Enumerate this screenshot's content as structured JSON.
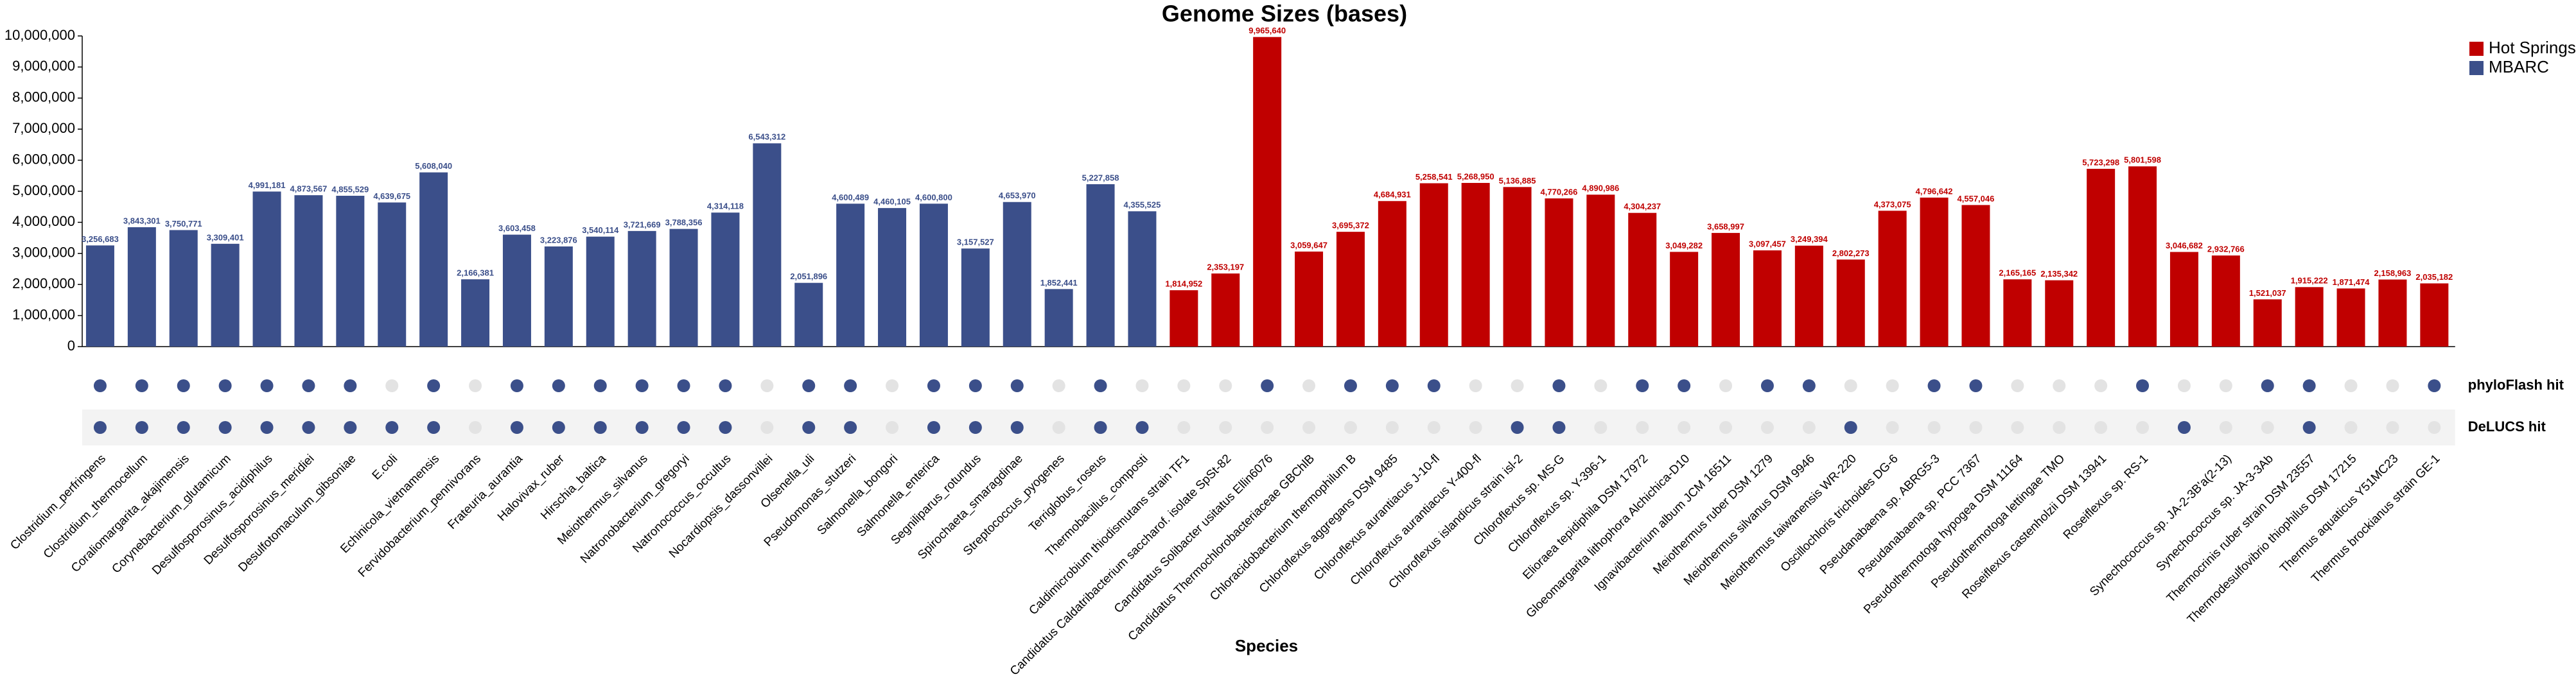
{
  "chart_data": {
    "type": "bar",
    "title": "Genome Sizes (bases)",
    "x_label": "Species",
    "categories": [
      "Clostridium_perfringens",
      "Clostridium_thermocellum",
      "Coraliomargarita_akajimensis",
      "Corynebacterium_glutamicum",
      "Desulfosporosinus_acidiphilus",
      "Desulfosporosinus_meridiei",
      "Desulfotomaculum_gibsoniae",
      "E.coli",
      "Echinicola_vietnamensis",
      "Fervidobacterium_pennivorans",
      "Frateuria_aurantia",
      "Halovivax_ruber",
      "Hirschia_baltica",
      "Meiothermus_silvanus",
      "Natronobacterium_gregoryi",
      "Natronococcus_occultus",
      "Nocardiopsis_dassonvillei",
      "Olsenella_uli",
      "Pseudomonas_stutzeri",
      "Salmonella_bongori",
      "Salmonella_enterica",
      "Segniliparus_rotundus",
      "Spirochaeta_smaragdinae",
      "Streptococcus_pyogenes",
      "Terriglobus_roseus",
      "Thermobacillus_composti",
      "Caldimicrobium thiodismutans strain TF1",
      "Candidatus Caldatribacterium saccharof. isolate SpSt-82",
      "Candidatus Solibacter usitatus Ellin6076",
      "Candidatus Thermochlorobacteriaceae GBChlB",
      "Chloracidobacterium thermophilum B",
      "Chloroflexus aggregans DSM 9485",
      "Chloroflexus aurantiacus J-10-fl",
      "Chloroflexus aurantiacus Y-400-fl",
      "Chloroflexus islandicus strain isl-2",
      "Chloroflexus sp. MS-G",
      "Chloroflexus sp. Y-396-1",
      "Elioraea tepidiphila DSM 17972",
      "Gloeomargarita lithophora Alchichica-D10",
      "Ignavibacterium album JCM 16511",
      "Meiothermus ruber DSM 1279",
      "Meiothermus silvanus DSM 9946",
      "Meiothermus taiwanensis WR-220",
      "Oscillochloris trichoides DG-6",
      "Pseudanabaena sp. ABRG5-3",
      "Pseudanabaena sp. PCC 7367",
      "Pseudothermotoga hypogea DSM 11164",
      "Pseudothermotoga lettingae TMO",
      "Roseiflexus castenholzii DSM 13941",
      "Roseiflexus sp. RS-1",
      null,
      "Synechococcus sp. JA-2-3B'a(2-13)",
      "Synechococcus sp. JA-3-3Ab",
      "Thermocrinis ruber strain DSM 23557",
      "Thermodesulfovibrio thiophilus DSM 17215",
      "Thermus aquaticus Y51MC23",
      "Thermus brockianus strain GE-1"
    ],
    "series": [
      {
        "name": "Hot Springs",
        "color": "#c00000",
        "values": [
          null,
          null,
          null,
          null,
          null,
          null,
          null,
          null,
          null,
          null,
          null,
          null,
          null,
          null,
          null,
          null,
          null,
          null,
          null,
          null,
          null,
          null,
          null,
          null,
          null,
          null,
          1814952,
          2353197,
          9965640,
          3059647,
          3695372,
          4684931,
          5258541,
          5268950,
          5136885,
          4770266,
          4890986,
          4304237,
          3049282,
          3658997,
          3097457,
          3249394,
          2802273,
          4373075,
          4796642,
          4557046,
          2165165,
          2135342,
          5723298,
          5801598,
          3046682,
          2932766,
          1521037,
          1915222,
          1871474,
          2158963,
          2035182
        ],
        "value_labels": [
          null,
          null,
          null,
          null,
          null,
          null,
          null,
          null,
          null,
          null,
          null,
          null,
          null,
          null,
          null,
          null,
          null,
          null,
          null,
          null,
          null,
          null,
          null,
          null,
          null,
          null,
          "1,814,952",
          "2,353,197",
          "9,965,640",
          "3,059,647",
          "3,695,372",
          "4,684,931",
          "5,258,541",
          "5,268,950",
          "5,136,885",
          "4,770,266",
          "4,890,986",
          "4,304,237",
          "3,049,282",
          "3,658,997",
          "3,097,457",
          "3,249,394",
          "2,802,273",
          "4,373,075",
          "4,796,642",
          "4,557,046",
          "2,165,165",
          "2,135,342",
          "5,723,298",
          "5,801,598",
          "3,046,682",
          "2,932,766",
          "1,521,037",
          "1,915,222",
          "1,871,474",
          "2,158,963",
          "2,035,182"
        ]
      },
      {
        "name": "MBARC",
        "color": "#3b4f8a",
        "values": [
          3256683,
          3843301,
          3750771,
          3309401,
          4991181,
          4873567,
          4855529,
          4639675,
          5608040,
          2166381,
          3603458,
          3223876,
          3540114,
          3721669,
          3788356,
          4314118,
          6543312,
          2051896,
          4600489,
          4460105,
          4600800,
          3157527,
          4653970,
          1852441,
          5227858,
          4355525,
          null,
          null,
          null,
          null,
          null,
          null,
          null,
          null,
          null,
          null,
          null,
          null,
          null,
          null,
          null,
          null,
          null,
          null,
          null,
          null,
          null,
          null,
          null,
          null,
          null,
          null,
          null,
          null,
          null,
          null,
          null
        ],
        "value_labels": [
          "3,256,683",
          "3,843,301",
          "3,750,771",
          "3,309,401",
          "4,991,181",
          "4,873,567",
          "4,855,529",
          "4,639,675",
          "5,608,040",
          "2,166,381",
          "3,603,458",
          "3,223,876",
          "3,540,114",
          "3,721,669",
          "3,788,356",
          "4,314,118",
          "6,543,312",
          "2,051,896",
          "4,600,489",
          "4,460,105",
          "4,600,800",
          "3,157,527",
          "4,653,970",
          "1,852,441",
          "5,227,858",
          "4,355,525",
          null,
          null,
          null,
          null,
          null,
          null,
          null,
          null,
          null,
          null,
          null,
          null,
          null,
          null,
          null,
          null,
          null,
          null,
          null,
          null,
          null,
          null,
          null,
          null,
          null,
          null,
          null,
          null,
          null,
          null,
          null
        ]
      }
    ],
    "ylim": [
      0,
      10000000
    ],
    "yticks": [
      0,
      {
        "value": 1000000,
        "label": "1,000,000"
      },
      {
        "value": 2000000,
        "label": "2,000,000"
      },
      {
        "value": 3000000,
        "label": "3,000,000"
      },
      {
        "value": 4000000,
        "label": "4,000,000"
      },
      {
        "value": 5000000,
        "label": "5,000,000"
      },
      {
        "value": 6000000,
        "label": "6,000,000"
      },
      {
        "value": 7000000,
        "label": "7,000,000"
      },
      {
        "value": 8000000,
        "label": "8,000,000"
      },
      {
        "value": 9000000,
        "label": "9,000,000"
      },
      {
        "value": 10000000,
        "label": "10,000,000"
      }
    ],
    "legend": "top-right",
    "hit_color": "#3b4f8a",
    "miss_color": "#e3e3e3",
    "tracks": [
      {
        "name": "phyloFlash hit",
        "values": [
          true,
          true,
          true,
          true,
          true,
          true,
          true,
          false,
          true,
          false,
          true,
          true,
          true,
          true,
          true,
          true,
          false,
          true,
          true,
          false,
          true,
          true,
          true,
          false,
          true,
          false,
          false,
          false,
          true,
          false,
          true,
          true,
          true,
          false,
          false,
          true,
          false,
          true,
          true,
          false,
          true,
          true,
          false,
          false,
          true,
          true,
          false,
          false,
          false,
          true,
          false,
          false,
          true,
          true,
          false,
          false,
          true
        ]
      },
      {
        "name": "DeLUCS hit",
        "values": [
          true,
          true,
          true,
          true,
          true,
          true,
          true,
          true,
          true,
          false,
          true,
          true,
          true,
          true,
          true,
          true,
          false,
          true,
          true,
          false,
          true,
          true,
          true,
          false,
          true,
          true,
          false,
          false,
          false,
          false,
          false,
          false,
          false,
          false,
          true,
          true,
          false,
          false,
          false,
          false,
          false,
          false,
          true,
          false,
          false,
          false,
          false,
          false,
          false,
          false,
          true,
          false,
          false,
          true,
          false,
          false,
          false
        ]
      }
    ]
  }
}
